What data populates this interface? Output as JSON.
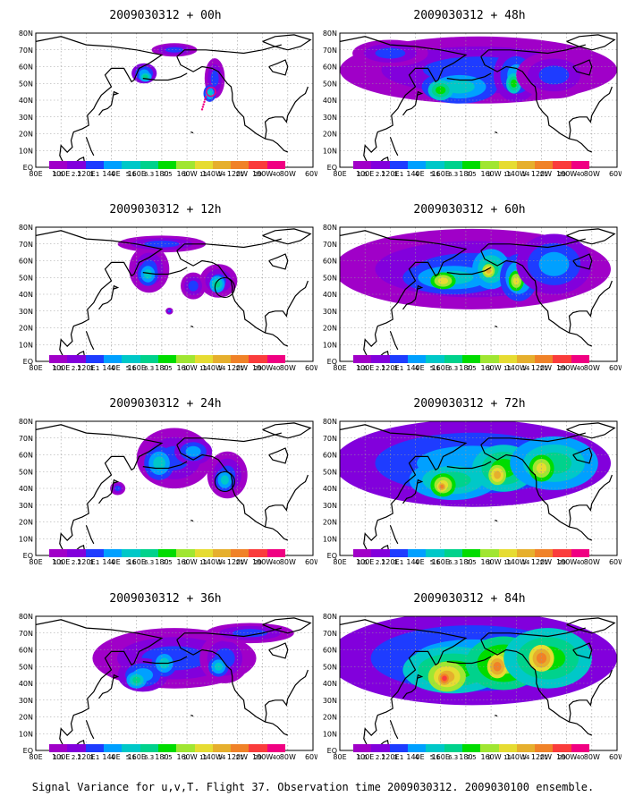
{
  "footer": "Signal Variance for u,v,T. Flight 37. Observation time 2009030312. 2009030100 ensemble.",
  "lat_labels": [
    "80N",
    "70N",
    "60N",
    "50N",
    "40N",
    "30N",
    "20N",
    "10N",
    "EQ"
  ],
  "lon_labels": [
    "80E",
    "100E",
    "120E",
    "140E",
    "160E",
    "180",
    "160W",
    "140W",
    "120W",
    "100W",
    "80W",
    "60W"
  ],
  "colorbar": {
    "levels": [
      "1.6",
      "2.2",
      "3.1",
      "4",
      "5.1",
      "6.3",
      "7.5",
      "9",
      "11",
      "14",
      "21",
      "29",
      "40"
    ],
    "colors": [
      "#a000c8",
      "#8200dc",
      "#1e3cff",
      "#00a0ff",
      "#00c8c8",
      "#00d28c",
      "#00dc00",
      "#a0e632",
      "#e6dc32",
      "#e6af2d",
      "#f08228",
      "#fa3c3c",
      "#f00082"
    ]
  },
  "panels": [
    {
      "title": "2009030312 + 00h",
      "intensity": 0
    },
    {
      "title": "2009030312 + 12h",
      "intensity": 1
    },
    {
      "title": "2009030312 + 24h",
      "intensity": 2
    },
    {
      "title": "2009030312 + 36h",
      "intensity": 3
    },
    {
      "title": "2009030312 + 48h",
      "intensity": 4
    },
    {
      "title": "2009030312 + 60h",
      "intensity": 5
    },
    {
      "title": "2009030312 + 72h",
      "intensity": 6
    },
    {
      "title": "2009030312 + 84h",
      "intensity": 7
    }
  ]
}
